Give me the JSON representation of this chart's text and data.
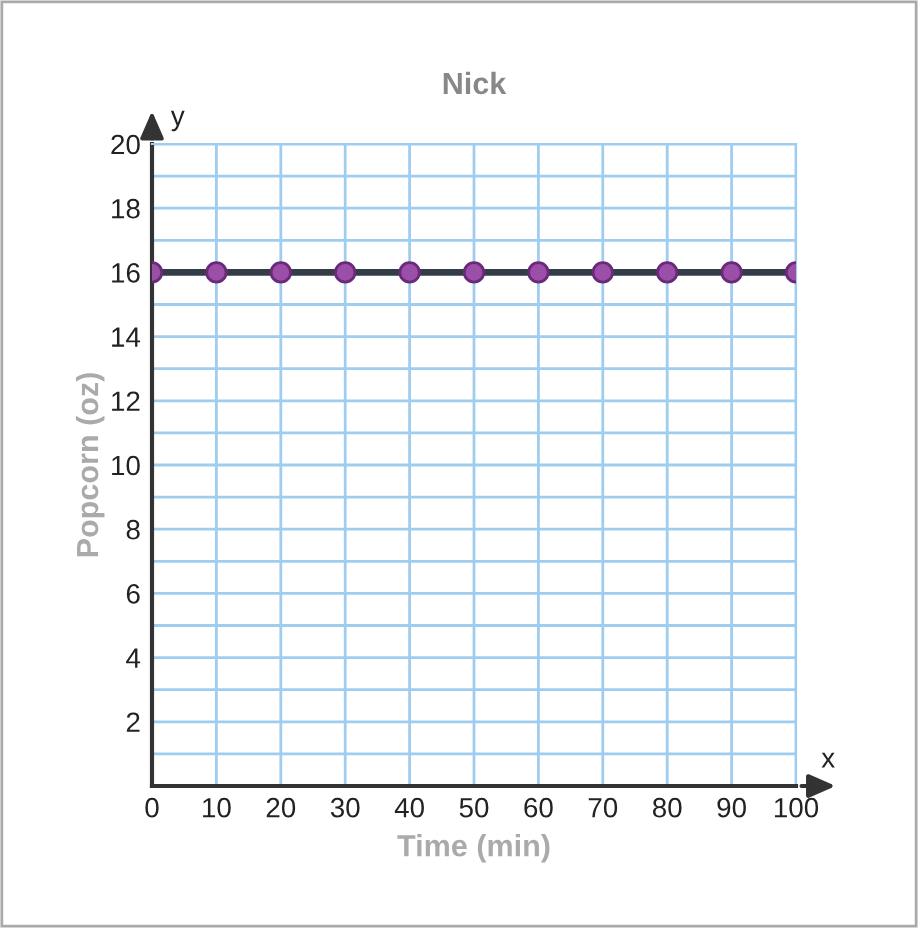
{
  "chart_data": {
    "type": "line",
    "title": "Nick",
    "xlabel": "Time (min)",
    "ylabel": "Popcorn (oz)",
    "x": [
      0,
      10,
      20,
      30,
      40,
      50,
      60,
      70,
      80,
      90,
      100
    ],
    "series": [
      {
        "color": "#333d47",
        "values": [
          16,
          16,
          16,
          16,
          16,
          16,
          16,
          16,
          16,
          16,
          16
        ]
      }
    ],
    "marker": "circle",
    "line_style": "solid",
    "xlim": [
      0,
      100
    ],
    "ylim": [
      0,
      20
    ],
    "xticks": [
      0,
      10,
      20,
      30,
      40,
      50,
      60,
      70,
      80,
      90,
      100
    ],
    "yticks": [
      {
        "value": 1,
        "label": null
      },
      2,
      {
        "value": 3,
        "label": null
      },
      4,
      {
        "value": 5,
        "label": null
      },
      6,
      {
        "value": 7,
        "label": null
      },
      8,
      {
        "value": 9,
        "label": null
      },
      10,
      {
        "value": 11,
        "label": null
      },
      12,
      {
        "value": 13,
        "label": null
      },
      14,
      {
        "value": 15,
        "label": null
      },
      16,
      {
        "value": 17,
        "label": null
      },
      18,
      {
        "value": 19,
        "label": null
      },
      20
    ],
    "grid": true,
    "annotations": [
      "x",
      "y"
    ]
  }
}
